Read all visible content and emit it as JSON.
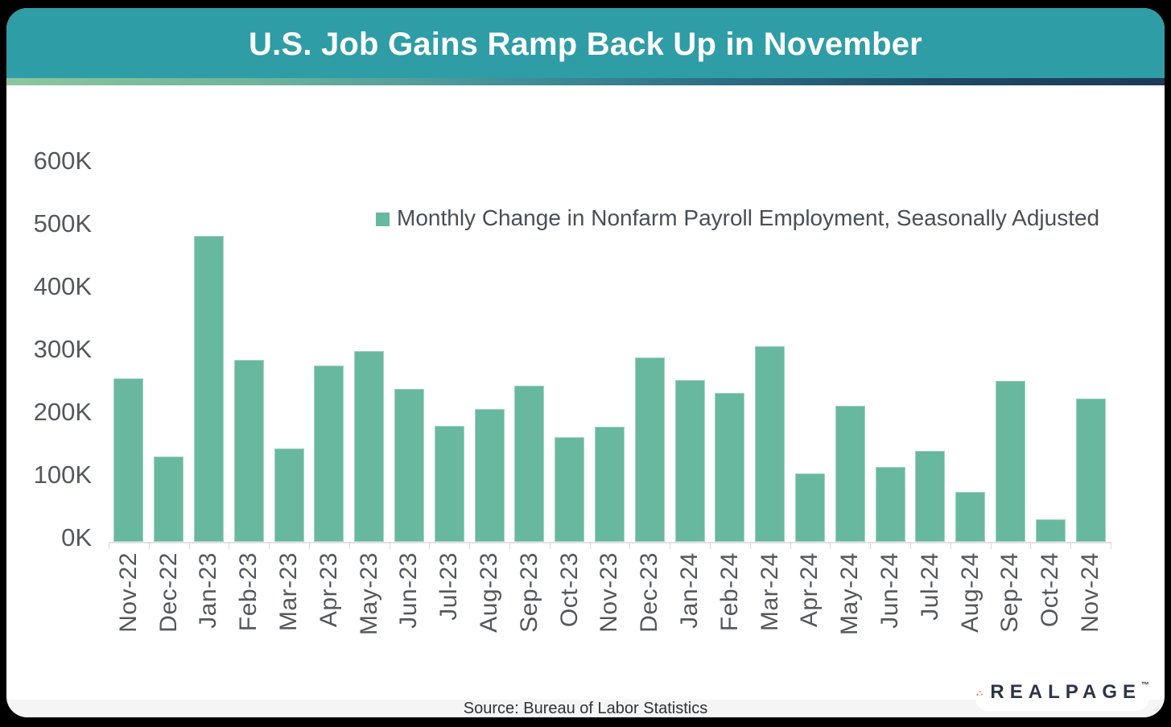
{
  "header": {
    "title": "U.S. Job Gains Ramp Back Up in November",
    "bg_color": "#2F9DA5",
    "text_color": "#FFFFFF"
  },
  "accent_strip": {
    "gradient_colors": [
      "#8CC79E",
      "#6FB39C",
      "#45929A",
      "#2E7186",
      "#1F4A66",
      "#1D3A57"
    ]
  },
  "legend": {
    "label": "Monthly Change in Nonfarm Payroll Employment, Seasonally Adjusted",
    "swatch_color": "#68B89F"
  },
  "chart_data": {
    "type": "bar",
    "title": "U.S. Job Gains Ramp Back Up in November",
    "series_name": "Monthly Change in Nonfarm Payroll Employment, Seasonally Adjusted",
    "unit": "thousands of jobs (K)",
    "categories": [
      "Nov-22",
      "Dec-22",
      "Jan-23",
      "Feb-23",
      "Mar-23",
      "Apr-23",
      "May-23",
      "Jun-23",
      "Jul-23",
      "Aug-23",
      "Sep-23",
      "Oct-23",
      "Nov-23",
      "Dec-23",
      "Jan-24",
      "Feb-24",
      "Mar-24",
      "Apr-24",
      "May-24",
      "Jun-24",
      "Jul-24",
      "Aug-24",
      "Sep-24",
      "Oct-24",
      "Nov-24"
    ],
    "values": [
      260,
      136,
      487,
      290,
      149,
      281,
      304,
      243,
      185,
      212,
      248,
      167,
      183,
      293,
      257,
      237,
      311,
      109,
      216,
      119,
      145,
      79,
      256,
      36,
      228
    ],
    "yticks": [
      0,
      100,
      200,
      300,
      400,
      500,
      600
    ],
    "ytick_labels": [
      "0K",
      "100K",
      "200K",
      "300K",
      "400K",
      "500K",
      "600K"
    ],
    "ylim": [
      0,
      600
    ],
    "xlabel": "",
    "ylabel": "",
    "grid": false,
    "legend_position": "top-center",
    "bar_color": "#68B89F",
    "axis_text_color": "#54585C"
  },
  "footer": {
    "source": "Source: Bureau of Labor Statistics"
  },
  "logo": {
    "wordmark": "REALPAGE",
    "trademark": "™",
    "dot_color": "#E97A5C",
    "word_color": "#2E3347"
  }
}
